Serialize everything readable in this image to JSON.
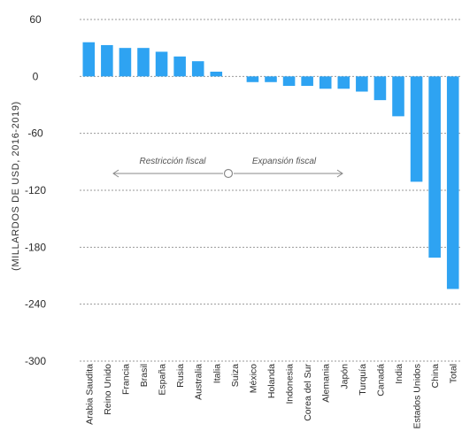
{
  "chart_data": {
    "type": "bar",
    "title": "",
    "xlabel": "",
    "ylabel": "(MILLARDOS DE USD, 2016-2019)",
    "ylim": [
      -300,
      60
    ],
    "yticks": [
      60,
      0,
      -60,
      -120,
      -180,
      -240,
      -300
    ],
    "grid": true,
    "categories": [
      "Arabia Saudita",
      "Reino Unido",
      "Francia",
      "Brasil",
      "España",
      "Rusia",
      "Australia",
      "Italia",
      "Suiza",
      "México",
      "Holanda",
      "Indonesia",
      "Corea del Sur",
      "Alemania",
      "Japón",
      "Turquía",
      "Canadá",
      "India",
      "Estados Unidos",
      "China",
      "Total"
    ],
    "values": [
      36,
      33,
      30,
      30,
      26,
      21,
      16,
      5,
      0,
      -6,
      -6,
      -10,
      -10,
      -13,
      -13,
      -16,
      -25,
      -42,
      -111,
      -191,
      -224
    ],
    "bar_color": "#2ea3f2",
    "annotations": {
      "left": "Restricción fiscal",
      "right": "Expansión fiscal"
    }
  }
}
